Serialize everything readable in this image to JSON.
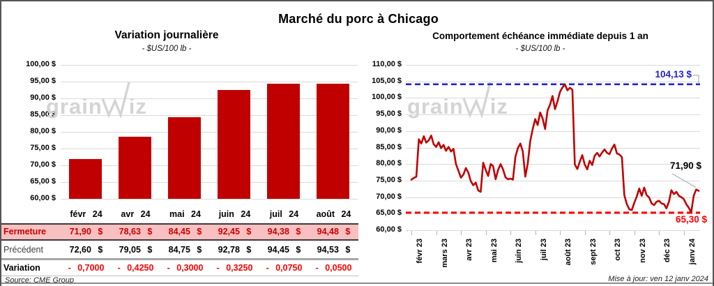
{
  "page": {
    "title": "Marché du porc à Chicago",
    "source": "Source: CME Group",
    "updated": "Mise à jour: ven 12 janv 2024",
    "watermark": {
      "left_text": "grain",
      "right_text": "iz"
    }
  },
  "colors": {
    "bar": "#C00000",
    "line": "#C00000",
    "grid": "#D9D9D9",
    "high_reference": "#2222CC",
    "low_reference": "#FF0000",
    "table_highlight_bg": "#F8C0C0",
    "table_highlight_text": "#CC0000",
    "variation_text": "#FF0000"
  },
  "table": {
    "months": [
      "févr 24",
      "avr 24",
      "mai 24",
      "juin 24",
      "juil 24",
      "août 24"
    ],
    "rows": [
      {
        "label": "Fermeture",
        "style": "fermeture",
        "values": [
          "71,90 $",
          "78,63 $",
          "84,45 $",
          "92,45 $",
          "94,38 $",
          "94,48 $"
        ]
      },
      {
        "label": "Précédent",
        "style": "precedent",
        "values": [
          "72,60 $",
          "79,05 $",
          "84,75 $",
          "92,78 $",
          "94,45 $",
          "94,53 $"
        ]
      },
      {
        "label": "Variation",
        "style": "variation",
        "values": [
          "- 0,7000",
          "- 0,4250",
          "- 0,3000",
          "- 0,3250",
          "- 0,0750",
          "- 0,0500"
        ]
      }
    ]
  },
  "chart_data": [
    {
      "type": "bar",
      "title": "Variation journalière",
      "subtitle": "- $US/100 lb -",
      "unit": "$US/100 lb",
      "categories": [
        "févr 24",
        "avr 24",
        "mai 24",
        "juin 24",
        "juil 24",
        "août 24"
      ],
      "values": [
        71.9,
        78.63,
        84.45,
        92.45,
        94.38,
        94.48
      ],
      "ylim": [
        60,
        100
      ],
      "ytick_step": 5,
      "ytick_labels": [
        "100,00 $",
        "95,00 $",
        "90,00 $",
        "85,00 $",
        "80,00 $",
        "75,00 $",
        "70,00 $",
        "65,00 $",
        "60,00 $"
      ],
      "grid": true,
      "bar_color": "#C00000"
    },
    {
      "type": "line",
      "title": "Comportement échéance immédiate depuis 1 an",
      "subtitle": "- $US/100 lb -",
      "unit": "$US/100 lb",
      "x_labels": [
        "févr 23",
        "mars 23",
        "avr 23",
        "mai 23",
        "juin 23",
        "juil 23",
        "août 23",
        "sept 23",
        "oct 23",
        "nov 23",
        "déc 23",
        "janv 24"
      ],
      "points_per_label": 10,
      "values": [
        75.3,
        75.8,
        76.2,
        87.5,
        86.2,
        88.4,
        86.5,
        87.2,
        88.6,
        86.0,
        85.2,
        86.6,
        84.8,
        85.8,
        84.0,
        85.2,
        83.8,
        84.6,
        80.0,
        78.0,
        75.9,
        76.8,
        78.8,
        77.4,
        74.8,
        73.6,
        74.4,
        72.0,
        71.6,
        80.4,
        78.2,
        76.4,
        80.0,
        79.4,
        75.4,
        78.2,
        80.0,
        78.4,
        76.0,
        75.4,
        75.6,
        75.3,
        82.2,
        84.8,
        86.2,
        83.8,
        76.2,
        80.2,
        87.0,
        90.6,
        93.6,
        91.8,
        95.6,
        93.8,
        90.6,
        96.2,
        98.0,
        100.6,
        96.6,
        99.0,
        101.8,
        103.2,
        104.1,
        102.3,
        103.1,
        102.5,
        79.9,
        78.5,
        80.7,
        82.7,
        79.9,
        78.4,
        81.0,
        79.7,
        82.5,
        83.4,
        82.3,
        83.5,
        84.4,
        83.4,
        83.0,
        84.7,
        85.9,
        83.2,
        82.9,
        82.1,
        70.6,
        67.9,
        66.3,
        66.1,
        68.3,
        70.2,
        72.6,
        70.4,
        72.9,
        70.6,
        69.9,
        68.1,
        67.6,
        68.6,
        68.9,
        68.1,
        67.9,
        66.6,
        68.6,
        72.1,
        70.9,
        71.6,
        70.4,
        70.0,
        69.4,
        67.9,
        66.8,
        65.4,
        70.4,
        72.3,
        71.9
      ],
      "ylim": [
        60,
        110
      ],
      "ytick_step": 5,
      "ytick_labels": [
        "110,00 $",
        "105,00 $",
        "100,00 $",
        "95,00 $",
        "90,00 $",
        "85,00 $",
        "80,00 $",
        "75,00 $",
        "70,00 $",
        "65,00 $",
        "60,00 $"
      ],
      "grid": true,
      "line_color": "#C00000",
      "reference_lines": [
        {
          "value": 104.13,
          "label": "104,13 $",
          "color": "#2222CC",
          "style": "dashed",
          "position": "high"
        },
        {
          "value": 65.3,
          "label": "65,30 $",
          "color": "#FF0000",
          "style": "dashed",
          "position": "low"
        }
      ],
      "last_point": {
        "value": 71.9,
        "label": "71,90 $"
      }
    }
  ]
}
